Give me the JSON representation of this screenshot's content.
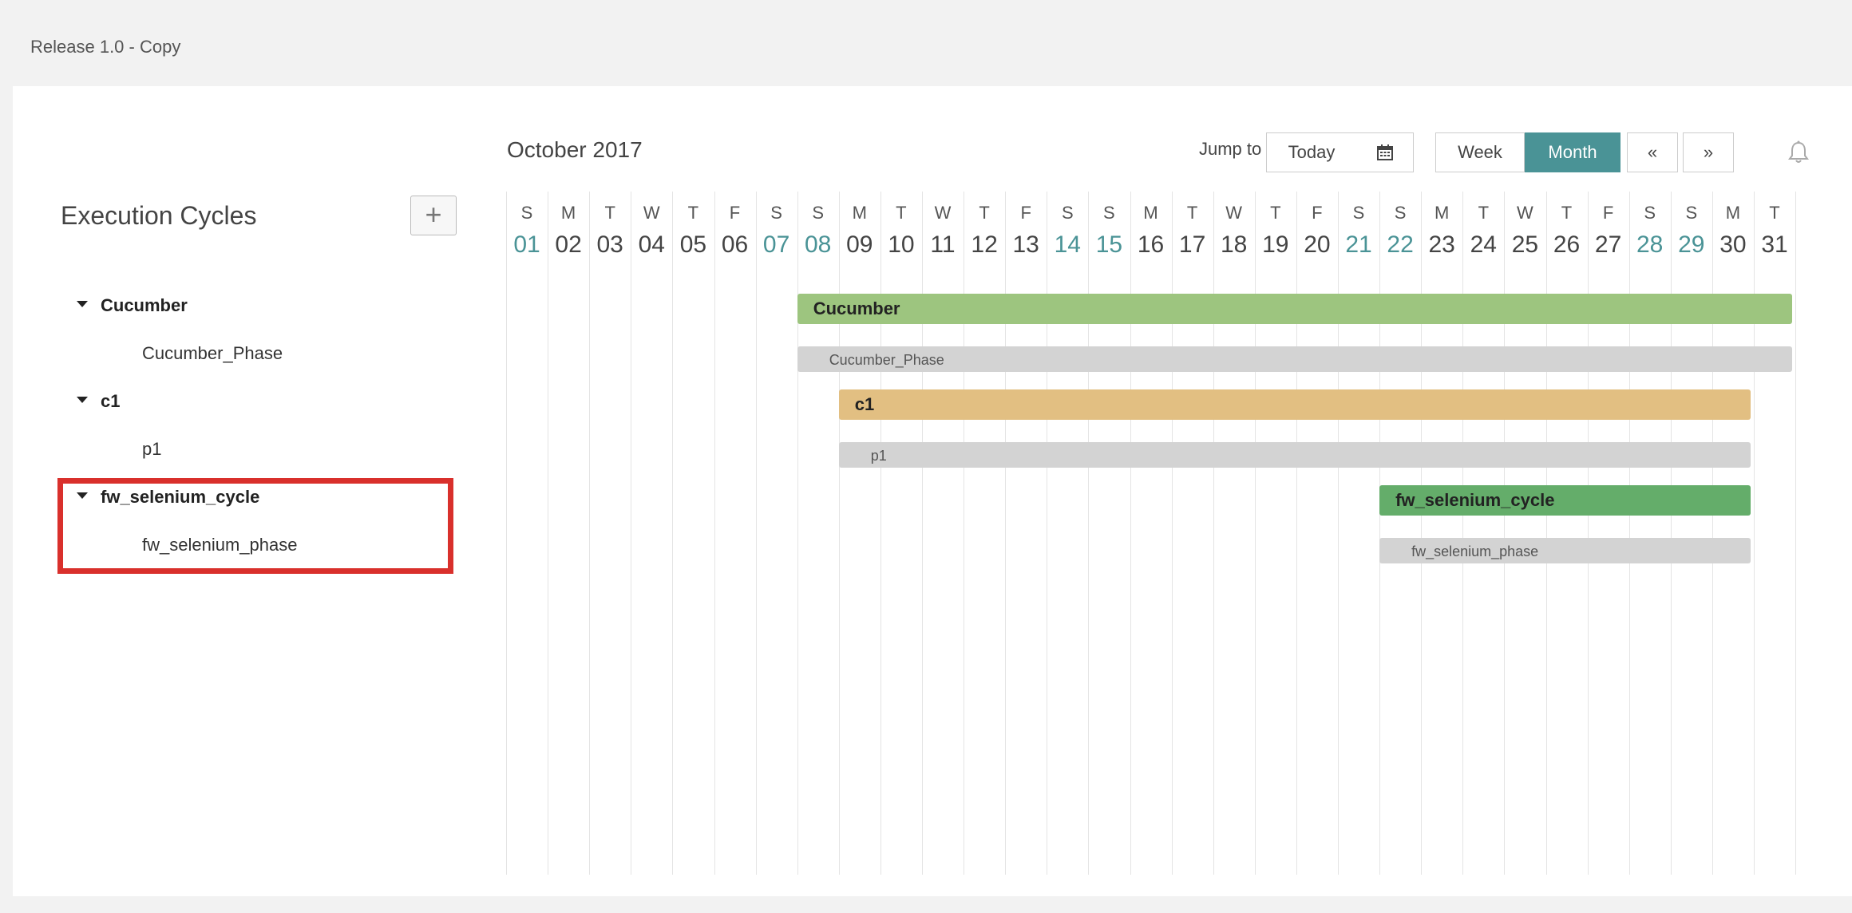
{
  "release_title": "Release 1.0 - Copy",
  "tree": {
    "title": "Execution Cycles",
    "add_label": "+",
    "items": [
      {
        "type": "cycle",
        "label": "Cucumber"
      },
      {
        "type": "phase",
        "label": "Cucumber_Phase"
      },
      {
        "type": "cycle",
        "label": "c1"
      },
      {
        "type": "phase",
        "label": "p1"
      },
      {
        "type": "cycle",
        "label": "fw_selenium_cycle"
      },
      {
        "type": "phase",
        "label": "fw_selenium_phase"
      }
    ]
  },
  "calendar": {
    "month_label": "October 2017",
    "jump_label": "Jump to :",
    "today_label": "Today",
    "calendar_icon": "calendar-icon",
    "week_label": "Week",
    "month_view_label": "Month",
    "prev_label": "«",
    "next_label": "»",
    "bell_icon": "bell-icon",
    "accent_color": "#4a9396",
    "days": [
      {
        "l": "S",
        "n": "01",
        "w": true
      },
      {
        "l": "M",
        "n": "02",
        "w": false
      },
      {
        "l": "T",
        "n": "03",
        "w": false
      },
      {
        "l": "W",
        "n": "04",
        "w": false
      },
      {
        "l": "T",
        "n": "05",
        "w": false
      },
      {
        "l": "F",
        "n": "06",
        "w": false
      },
      {
        "l": "S",
        "n": "07",
        "w": true
      },
      {
        "l": "S",
        "n": "08",
        "w": true
      },
      {
        "l": "M",
        "n": "09",
        "w": false
      },
      {
        "l": "T",
        "n": "10",
        "w": false
      },
      {
        "l": "W",
        "n": "11",
        "w": false
      },
      {
        "l": "T",
        "n": "12",
        "w": false
      },
      {
        "l": "F",
        "n": "13",
        "w": false
      },
      {
        "l": "S",
        "n": "14",
        "w": true
      },
      {
        "l": "S",
        "n": "15",
        "w": true
      },
      {
        "l": "M",
        "n": "16",
        "w": false
      },
      {
        "l": "T",
        "n": "17",
        "w": false
      },
      {
        "l": "W",
        "n": "18",
        "w": false
      },
      {
        "l": "T",
        "n": "19",
        "w": false
      },
      {
        "l": "F",
        "n": "20",
        "w": false
      },
      {
        "l": "S",
        "n": "21",
        "w": true
      },
      {
        "l": "S",
        "n": "22",
        "w": true
      },
      {
        "l": "M",
        "n": "23",
        "w": false
      },
      {
        "l": "T",
        "n": "24",
        "w": false
      },
      {
        "l": "W",
        "n": "25",
        "w": false
      },
      {
        "l": "T",
        "n": "26",
        "w": false
      },
      {
        "l": "F",
        "n": "27",
        "w": false
      },
      {
        "l": "S",
        "n": "28",
        "w": true
      },
      {
        "l": "S",
        "n": "29",
        "w": true
      },
      {
        "l": "M",
        "n": "30",
        "w": false
      },
      {
        "l": "T",
        "n": "31",
        "w": false
      }
    ],
    "bars": [
      {
        "label": "Cucumber",
        "type": "cycle",
        "start": 8,
        "end": 31,
        "color": "#9dc57f"
      },
      {
        "label": "Cucumber_Phase",
        "type": "phase",
        "start": 8,
        "end": 31
      },
      {
        "label": "c1",
        "type": "cycle",
        "start": 9,
        "end": 30,
        "color": "#e2bf82"
      },
      {
        "label": "p1",
        "type": "phase",
        "start": 9,
        "end": 30
      },
      {
        "label": "fw_selenium_cycle",
        "type": "cycle",
        "start": 22,
        "end": 30,
        "color": "#64ad6a"
      },
      {
        "label": "fw_selenium_phase",
        "type": "phase",
        "start": 22,
        "end": 30
      }
    ]
  }
}
